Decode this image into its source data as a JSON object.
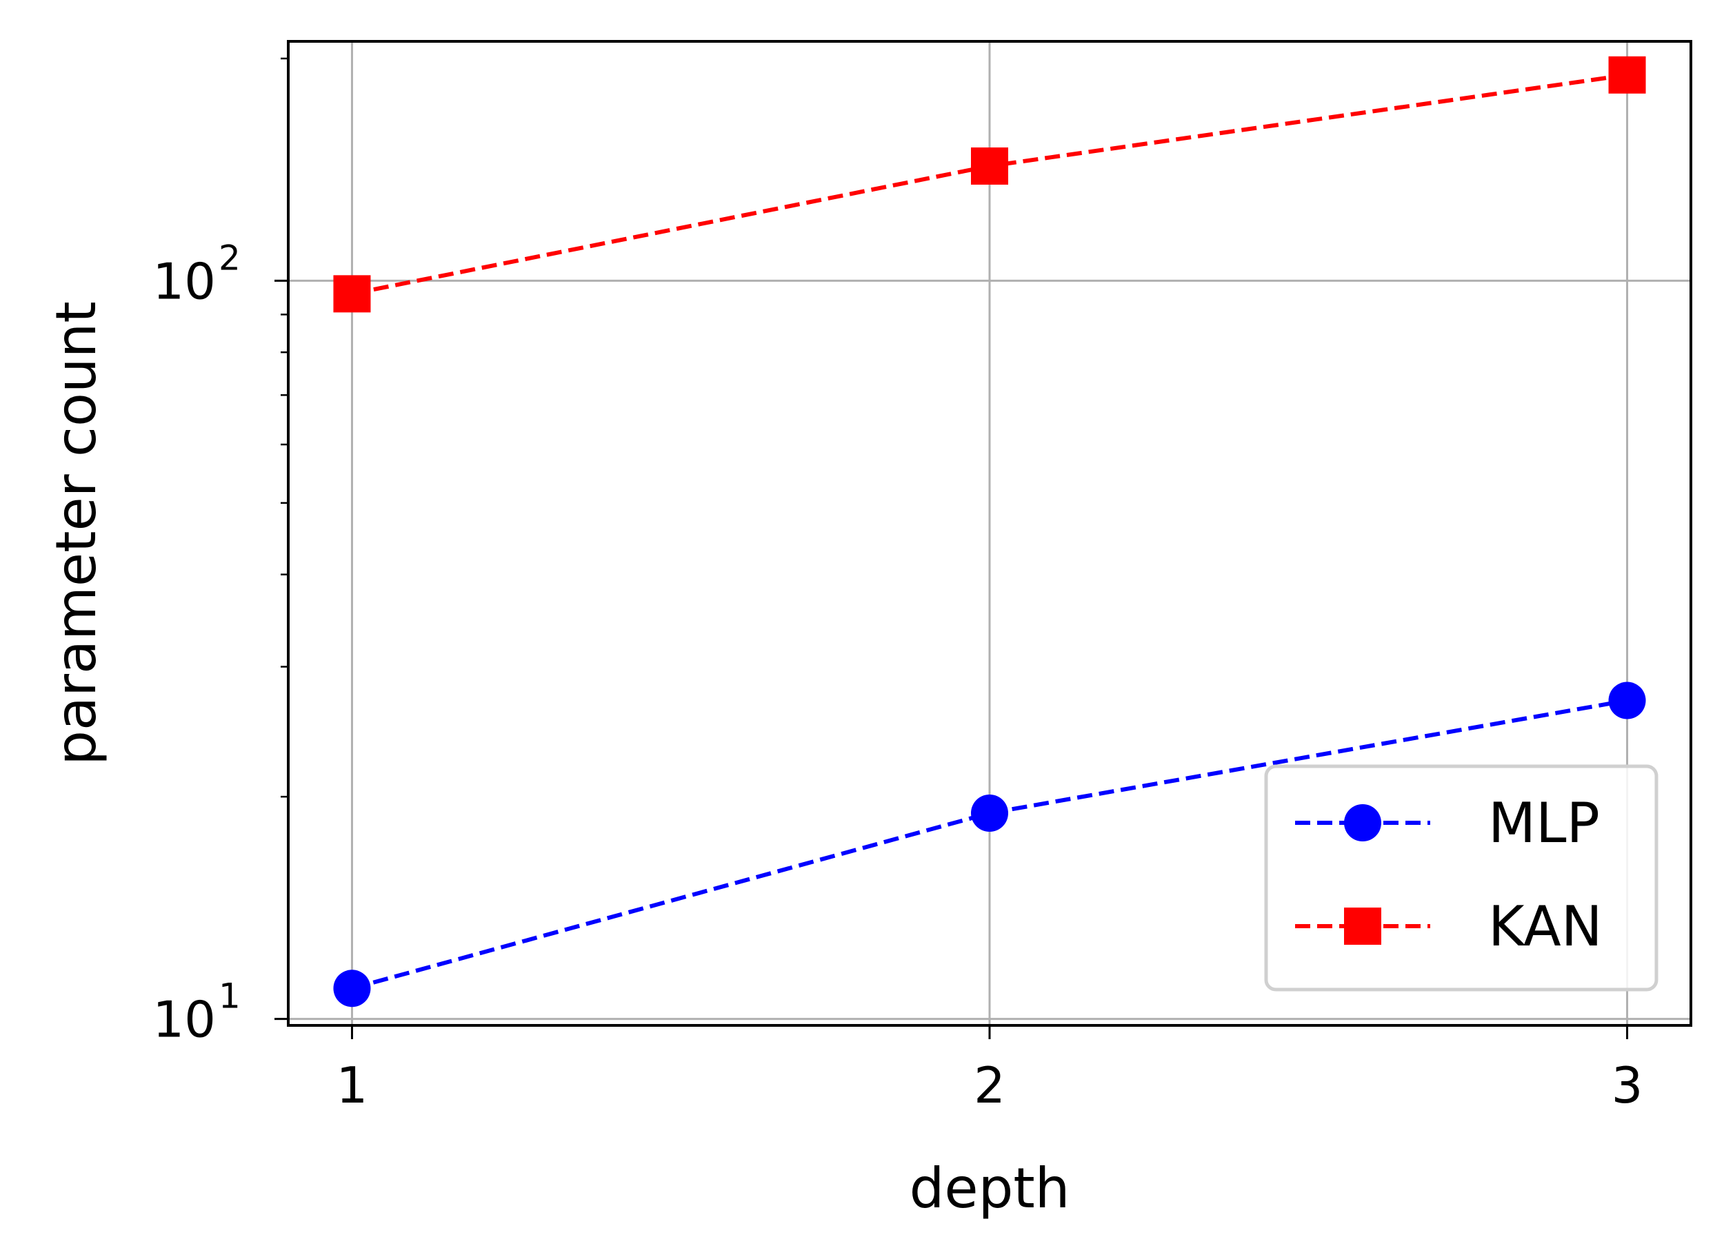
{
  "chart_data": {
    "type": "line",
    "xlabel": "depth",
    "ylabel": "parameter count",
    "x": [
      1,
      2,
      3
    ],
    "x_ticks": [
      "1",
      "2",
      "3"
    ],
    "xlim": [
      0.9,
      3.1
    ],
    "yscale": "log",
    "ylim": [
      9.8,
      211
    ],
    "y_ticks": [
      {
        "value": 10,
        "base": "10",
        "exp": "1"
      },
      {
        "value": 100,
        "base": "10",
        "exp": "2"
      }
    ],
    "grid": true,
    "legend_position": "lower right",
    "series": [
      {
        "name": "MLP",
        "values": [
          11,
          19,
          27
        ],
        "color": "#0000ff",
        "marker": "circle",
        "linestyle": "dashed"
      },
      {
        "name": "KAN",
        "values": [
          96,
          143,
          190
        ],
        "color": "#ff0000",
        "marker": "square",
        "linestyle": "dashed"
      }
    ]
  }
}
